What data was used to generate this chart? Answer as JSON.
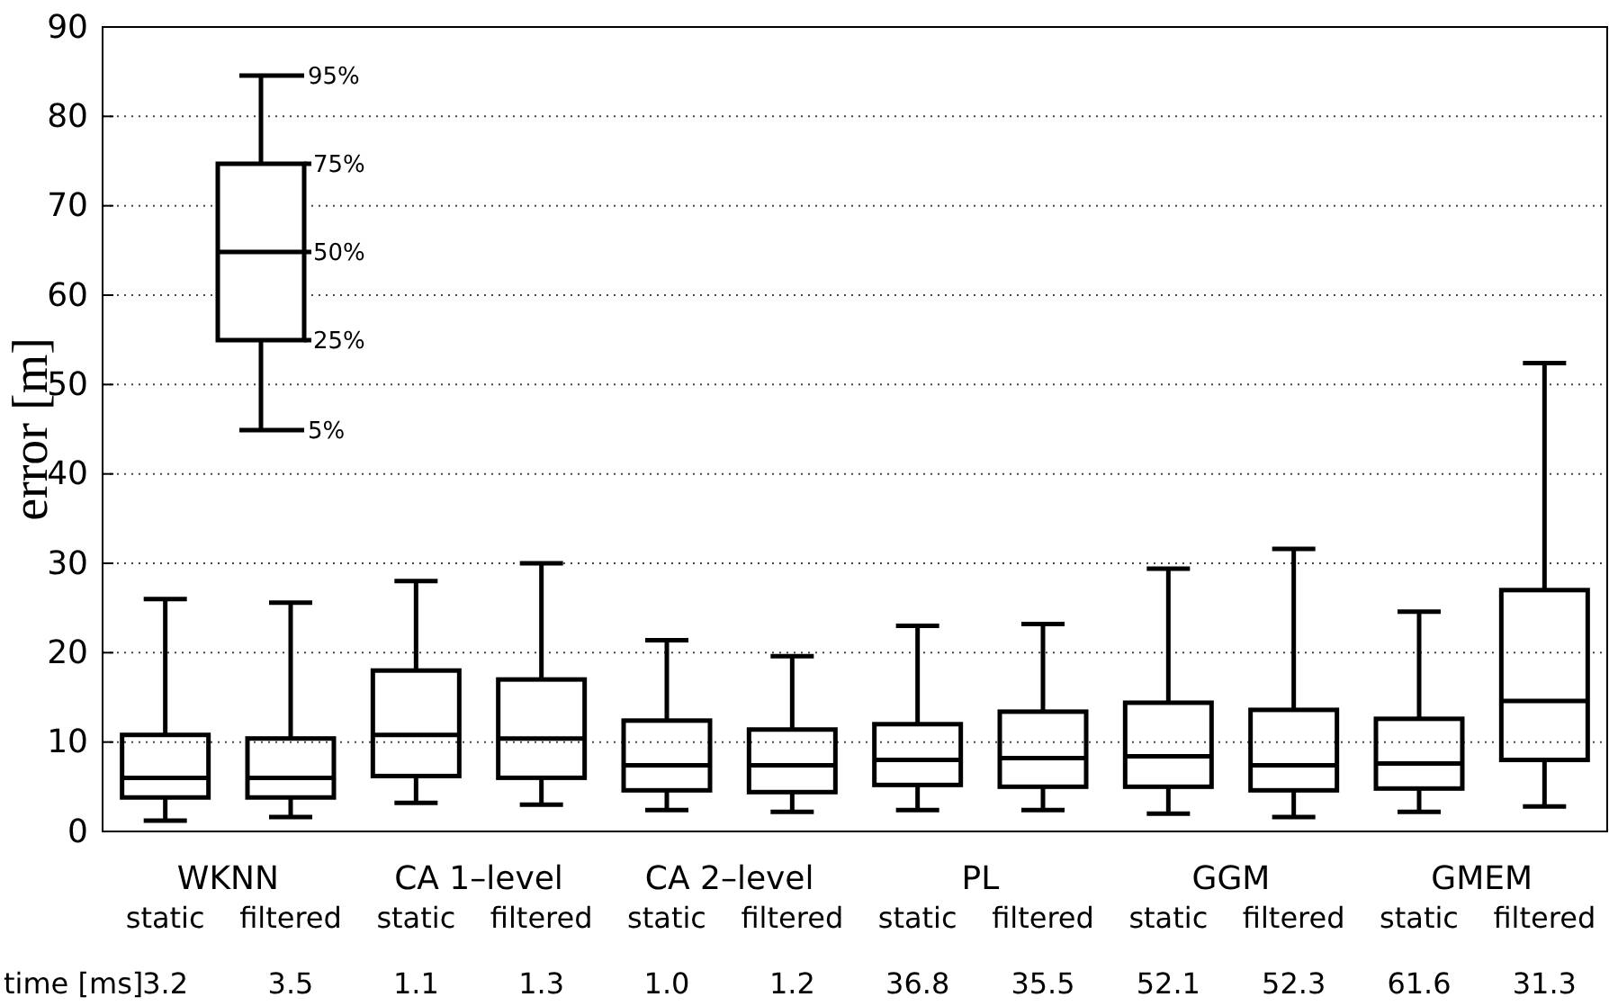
{
  "chart_data": {
    "type": "box",
    "ylabel": "error [m]",
    "categories": [
      "static",
      "filtered",
      "static",
      "filtered",
      "static",
      "filtered",
      "static",
      "filtered",
      "static",
      "filtered",
      "static",
      "filtered"
    ],
    "boxes": [
      {
        "low": 1.2,
        "q1": 3.8,
        "median": 6,
        "q3": 10.8,
        "high": 26
      },
      {
        "low": 1.6,
        "q1": 3.8,
        "median": 6,
        "q3": 10.4,
        "high": 25.6
      },
      {
        "low": 3.2,
        "q1": 6.2,
        "median": 10.8,
        "q3": 18,
        "high": 28
      },
      {
        "low": 3,
        "q1": 6,
        "median": 10.4,
        "q3": 17,
        "high": 30
      },
      {
        "low": 2.4,
        "q1": 4.6,
        "median": 7.4,
        "q3": 12.4,
        "high": 21.4
      },
      {
        "low": 2.2,
        "q1": 4.4,
        "median": 7.4,
        "q3": 11.4,
        "high": 19.6
      },
      {
        "low": 2.4,
        "q1": 5.2,
        "median": 8,
        "q3": 12,
        "high": 23
      },
      {
        "low": 2.4,
        "q1": 5,
        "median": 8.2,
        "q3": 13.4,
        "high": 23.2
      },
      {
        "low": 2,
        "q1": 5,
        "median": 8.4,
        "q3": 14.4,
        "high": 29.4
      },
      {
        "low": 1.6,
        "q1": 4.6,
        "median": 7.4,
        "q3": 13.6,
        "high": 31.6
      },
      {
        "low": 2.2,
        "q1": 4.8,
        "median": 7.6,
        "q3": 12.6,
        "high": 24.6
      },
      {
        "low": 2.8,
        "q1": 8,
        "median": 14.6,
        "q3": 27,
        "high": 52.4
      }
    ],
    "color": "#000000",
    "ylim": [
      0,
      90
    ],
    "yticks": [
      0,
      10,
      20,
      30,
      40,
      50,
      60,
      70,
      80,
      90
    ],
    "grid": "y",
    "line_style": "solid",
    "annotations": [
      "95%",
      "75%",
      "50%",
      "25%",
      "5%",
      "WKNN",
      "CA 1–level",
      "CA 2–level",
      "PL",
      "GGM",
      "GMEM",
      "time [ms]",
      "3.2",
      "3.5",
      "1.1",
      "1.3",
      "1.0",
      "1.2",
      "36.8",
      "35.5",
      "52.1",
      "52.3",
      "61.6",
      "31.3"
    ]
  }
}
